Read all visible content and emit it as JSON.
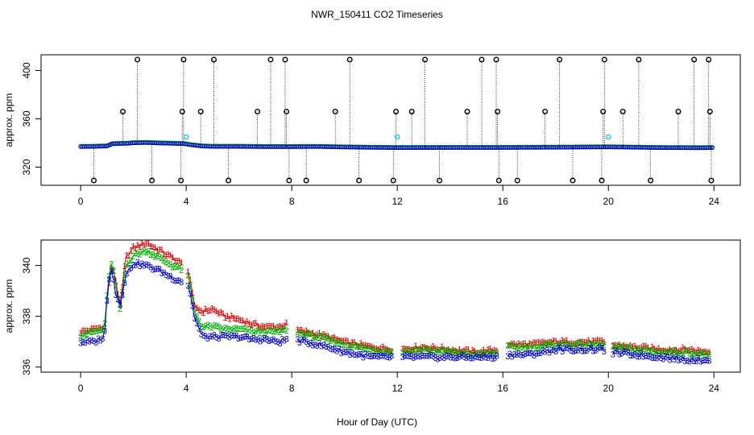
{
  "title": "NWR_150411  CO2 Timeseries",
  "xlabel": "Hour of Day (UTC)",
  "colors": {
    "s1": "#e00000",
    "s2": "#00b000",
    "s3": "#0000cc",
    "black": "#000000",
    "cyan": "#22cccc"
  },
  "chart_data": [
    {
      "type": "scatter",
      "title": "NWR_150411  CO2 Timeseries",
      "ylabel": "approx. ppm",
      "xlim": [
        -1.5,
        25
      ],
      "ylim": [
        305,
        413
      ],
      "xticks": [
        0,
        4,
        8,
        12,
        16,
        20,
        24
      ],
      "xtick_labels": [
        "0",
        "4",
        "8",
        "12",
        "16",
        "20",
        "24"
      ],
      "yticks": [
        320,
        360,
        400
      ],
      "ytick_labels": [
        "320",
        "360",
        "400"
      ],
      "baseline_series": [
        {
          "name": "main",
          "x": [
            0,
            0.5,
            1,
            1.2,
            1.5,
            1.8,
            2,
            2.5,
            3,
            3.5,
            3.9,
            4.2,
            4.6,
            5,
            6,
            7,
            8,
            9,
            10,
            11,
            12,
            14,
            16,
            18,
            20,
            22,
            23.5,
            23.9
          ],
          "values": [
            337.2,
            337.3,
            337.6,
            339.5,
            339.7,
            339.9,
            340.3,
            340.5,
            340.1,
            339.8,
            339.6,
            338.6,
            337.6,
            337.3,
            337.3,
            337.1,
            337.1,
            337.2,
            336.8,
            336.5,
            336.3,
            336.4,
            336.4,
            336.6,
            336.9,
            336.3,
            336.2,
            336.3
          ]
        }
      ],
      "cyan_points": {
        "x": [
          4.0,
          12.0,
          20.0
        ],
        "values": [
          345,
          345,
          345
        ]
      },
      "spike_hours": [
        0.5,
        1.6,
        2.15,
        2.7,
        3.8,
        3.85,
        3.9,
        4.55,
        5.05,
        5.6,
        6.7,
        7.2,
        7.75,
        7.8,
        7.9,
        8.55,
        9.65,
        10.2,
        10.55,
        11.85,
        11.95,
        12.55,
        13.05,
        13.6,
        14.65,
        15.2,
        15.75,
        15.8,
        15.85,
        16.55,
        17.6,
        18.15,
        18.65,
        19.75,
        19.8,
        19.85,
        20.55,
        21.15,
        21.6,
        22.65,
        23.25,
        23.8,
        23.85,
        23.9
      ],
      "spike_values": [
        309,
        366,
        409,
        309,
        309,
        366,
        409,
        366,
        409,
        309,
        366,
        409,
        409,
        366,
        309,
        309,
        366,
        409,
        309,
        309,
        366,
        366,
        409,
        309,
        366,
        409,
        409,
        366,
        309,
        309,
        366,
        409,
        309,
        309,
        366,
        409,
        366,
        409,
        309,
        366,
        409,
        409,
        366,
        309
      ]
    },
    {
      "type": "scatter",
      "ylabel": "approx. ppm",
      "xlim": [
        -1.5,
        25
      ],
      "ylim": [
        335.8,
        341.0
      ],
      "xticks": [
        0,
        4,
        8,
        12,
        16,
        20,
        24
      ],
      "xtick_labels": [
        "0",
        "4",
        "8",
        "12",
        "16",
        "20",
        "24"
      ],
      "yticks": [
        336,
        338,
        340
      ],
      "ytick_labels": [
        "336",
        "338",
        "340"
      ],
      "gaps": [
        [
          3.85,
          4.05
        ],
        [
          7.85,
          8.15
        ],
        [
          11.85,
          12.15
        ],
        [
          15.85,
          16.15
        ],
        [
          19.85,
          20.15
        ]
      ],
      "series": [
        {
          "name": "1",
          "marker": "1",
          "color": "#e00000",
          "x": [
            0,
            0.5,
            0.9,
            1.05,
            1.2,
            1.3,
            1.5,
            1.7,
            2,
            2.5,
            3,
            3.5,
            3.8,
            4.1,
            4.3,
            4.6,
            5,
            5.5,
            6,
            6.5,
            7,
            7.5,
            7.8,
            8,
            9,
            10,
            11,
            12,
            13,
            14,
            15,
            15.8,
            16,
            17,
            18,
            19,
            19.8,
            20,
            21,
            22,
            23,
            23.9
          ],
          "values": [
            337.4,
            337.5,
            337.6,
            339.2,
            340.0,
            339.6,
            338.4,
            340.3,
            340.7,
            340.9,
            340.6,
            340.3,
            340.1,
            339.8,
            338.4,
            338.2,
            338.3,
            338.0,
            337.9,
            337.7,
            337.6,
            337.6,
            337.7,
            337.5,
            337.3,
            337.0,
            336.8,
            336.7,
            336.8,
            336.7,
            336.6,
            336.7,
            336.9,
            336.9,
            337.0,
            337.0,
            337.0,
            336.9,
            336.8,
            336.7,
            336.7,
            336.6
          ]
        },
        {
          "name": "2",
          "marker": "2",
          "color": "#00b000",
          "x": [
            0,
            0.5,
            0.9,
            1.05,
            1.2,
            1.3,
            1.5,
            1.7,
            2,
            2.5,
            3,
            3.5,
            3.8,
            4.1,
            4.3,
            4.6,
            5,
            5.5,
            6,
            6.5,
            7,
            7.5,
            7.8,
            8,
            9,
            10,
            11,
            12,
            13,
            14,
            15,
            15.8,
            16,
            17,
            18,
            19,
            19.8,
            20,
            21,
            22,
            23,
            23.9
          ],
          "values": [
            337.3,
            337.4,
            337.5,
            339.5,
            340.2,
            339.3,
            338.2,
            340.0,
            340.4,
            340.6,
            340.3,
            340.0,
            339.9,
            339.5,
            338.2,
            337.6,
            337.6,
            337.5,
            337.5,
            337.4,
            337.4,
            337.4,
            337.5,
            337.4,
            337.2,
            336.9,
            336.7,
            336.6,
            336.7,
            336.6,
            336.5,
            336.6,
            336.8,
            336.8,
            336.9,
            336.9,
            336.9,
            336.8,
            336.7,
            336.6,
            336.6,
            336.5
          ]
        },
        {
          "name": "3",
          "marker": "3",
          "color": "#0000cc",
          "x": [
            0,
            0.5,
            0.9,
            1.05,
            1.2,
            1.3,
            1.5,
            1.7,
            2,
            2.5,
            3,
            3.5,
            3.8,
            4.1,
            4.3,
            4.6,
            5,
            5.5,
            6,
            6.5,
            7,
            7.5,
            7.8,
            8,
            9,
            10,
            11,
            12,
            13,
            14,
            15,
            15.8,
            16,
            17,
            18,
            19,
            19.8,
            20,
            21,
            22,
            23,
            23.9
          ],
          "values": [
            337.0,
            337.0,
            337.2,
            339.4,
            340.0,
            338.9,
            338.5,
            339.6,
            340.1,
            340.0,
            339.8,
            339.5,
            339.4,
            339.2,
            338.0,
            337.2,
            337.2,
            337.2,
            337.2,
            337.1,
            337.1,
            337.0,
            337.1,
            337.1,
            336.9,
            336.6,
            336.4,
            336.4,
            336.4,
            336.4,
            336.4,
            336.4,
            336.5,
            336.5,
            336.7,
            336.7,
            336.7,
            336.6,
            336.5,
            336.4,
            336.3,
            336.3
          ]
        }
      ]
    }
  ]
}
